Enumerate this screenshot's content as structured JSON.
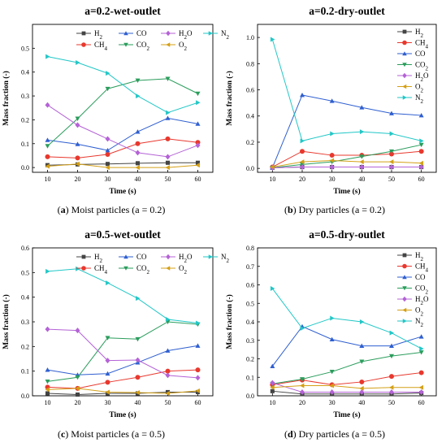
{
  "figure": {
    "captions": [
      {
        "letter": "a",
        "text": "Moist particles (a = 0.2)"
      },
      {
        "letter": "b",
        "text": "Dry particles (a = 0.2)"
      },
      {
        "letter": "c",
        "text": "Moist particles (a = 0.5)"
      },
      {
        "letter": "d",
        "text": "Dry particles (a = 0.5)"
      }
    ]
  },
  "styles": {
    "H2": {
      "color": "#444444",
      "marker": "square"
    },
    "CH4": {
      "color": "#e8382e",
      "marker": "circle"
    },
    "CO": {
      "color": "#2f5fd0",
      "marker": "triangle-up"
    },
    "CO2": {
      "color": "#2a9d5c",
      "marker": "triangle-down"
    },
    "H2O": {
      "color": "#b462d6",
      "marker": "diamond"
    },
    "O2": {
      "color": "#d4a017",
      "marker": "triangle-left"
    },
    "N2": {
      "color": "#22c7c7",
      "marker": "triangle-right"
    }
  },
  "legend_labels": {
    "H2": [
      "H",
      "2",
      ""
    ],
    "CH4": [
      "CH",
      "4",
      ""
    ],
    "CO": [
      "CO",
      "",
      ""
    ],
    "CO2": [
      "CO",
      "2",
      ""
    ],
    "H2O": [
      "H",
      "2",
      "O"
    ],
    "O2": [
      "O",
      "2",
      ""
    ],
    "N2": [
      "N",
      "2",
      ""
    ]
  },
  "chart_data": [
    {
      "type": "line",
      "title": "a=0.2-wet-outlet",
      "xlabel": "Time (s)",
      "ylabel": "Mass fraction (-)",
      "x": [
        10,
        20,
        30,
        40,
        50,
        60
      ],
      "xticks": [
        "10",
        "20",
        "30",
        "40",
        "50",
        "60"
      ],
      "ylim": [
        -0.02,
        0.6
      ],
      "yticks": [
        "0.0",
        "0.1",
        "0.2",
        "0.3",
        "0.4",
        "0.5"
      ],
      "ytick_values": [
        0,
        0.1,
        0.2,
        0.3,
        0.4,
        0.5
      ],
      "legend": "top, two rows",
      "legend_order": [
        "H2",
        "CO",
        "H2O",
        "N2",
        "CH4",
        "CO2",
        "O2"
      ],
      "series": [
        {
          "name": "H2",
          "values": [
            0.01,
            0.013,
            0.015,
            0.018,
            0.02,
            0.02
          ]
        },
        {
          "name": "CH4",
          "values": [
            0.045,
            0.04,
            0.055,
            0.1,
            0.12,
            0.105
          ]
        },
        {
          "name": "CO",
          "values": [
            0.115,
            0.098,
            0.072,
            0.15,
            0.207,
            0.183
          ]
        },
        {
          "name": "CO2",
          "values": [
            0.09,
            0.205,
            0.33,
            0.365,
            0.372,
            0.31
          ]
        },
        {
          "name": "H2O",
          "values": [
            0.262,
            0.178,
            0.12,
            0.062,
            0.045,
            0.093
          ]
        },
        {
          "name": "O2",
          "values": [
            0.005,
            0.015,
            0.0,
            0.0,
            0.0,
            0.01
          ]
        },
        {
          "name": "N2",
          "values": [
            0.465,
            0.44,
            0.395,
            0.3,
            0.23,
            0.272
          ]
        }
      ]
    },
    {
      "type": "line",
      "title": "a=0.2-dry-outlet",
      "xlabel": "Time (s)",
      "ylabel": "Mass fraction (-)",
      "x": [
        10,
        20,
        30,
        40,
        50,
        60
      ],
      "xticks": [
        "10",
        "20",
        "30",
        "40",
        "50",
        "60"
      ],
      "ylim": [
        -0.03,
        1.1
      ],
      "yticks": [
        "0.0",
        "0.2",
        "0.4",
        "0.6",
        "0.8",
        "1.0"
      ],
      "ytick_values": [
        0,
        0.2,
        0.4,
        0.6,
        0.8,
        1.0
      ],
      "legend": "top-right, vertical",
      "legend_order": [
        "H2",
        "CH4",
        "CO",
        "CO2",
        "H2O",
        "O2",
        "N2"
      ],
      "series": [
        {
          "name": "H2",
          "values": [
            0.005,
            0.01,
            0.01,
            0.01,
            0.01,
            0.01
          ]
        },
        {
          "name": "CH4",
          "values": [
            0.01,
            0.13,
            0.1,
            0.1,
            0.11,
            0.13
          ]
        },
        {
          "name": "CO",
          "values": [
            0.005,
            0.56,
            0.515,
            0.465,
            0.42,
            0.405
          ]
        },
        {
          "name": "CO2",
          "values": [
            0.005,
            0.03,
            0.05,
            0.09,
            0.13,
            0.18
          ]
        },
        {
          "name": "H2O",
          "values": [
            0.005,
            0.01,
            0.01,
            0.01,
            0.01,
            0.01
          ]
        },
        {
          "name": "O2",
          "values": [
            0.01,
            0.05,
            0.06,
            0.05,
            0.05,
            0.04
          ]
        },
        {
          "name": "N2",
          "values": [
            0.985,
            0.21,
            0.265,
            0.28,
            0.265,
            0.21
          ]
        }
      ]
    },
    {
      "type": "line",
      "title": "a=0.5-wet-outlet",
      "xlabel": "Time (s)",
      "ylabel": "Mass fraction (-)",
      "x": [
        10,
        20,
        30,
        40,
        50,
        60
      ],
      "xticks": [
        "10",
        "20",
        "30",
        "40",
        "50",
        "60"
      ],
      "ylim": [
        0,
        0.6
      ],
      "yticks": [
        "0.0",
        "0.1",
        "0.2",
        "0.3",
        "0.4",
        "0.5",
        "0.6"
      ],
      "ytick_values": [
        0,
        0.1,
        0.2,
        0.3,
        0.4,
        0.5,
        0.6
      ],
      "legend": "top, two rows",
      "legend_order": [
        "H2",
        "CO",
        "H2O",
        "N2",
        "CH4",
        "CO2",
        "O2"
      ],
      "series": [
        {
          "name": "H2",
          "values": [
            0.01,
            0.005,
            0.01,
            0.01,
            0.015,
            0.015
          ]
        },
        {
          "name": "CH4",
          "values": [
            0.035,
            0.03,
            0.055,
            0.075,
            0.1,
            0.105
          ]
        },
        {
          "name": "CO",
          "values": [
            0.105,
            0.085,
            0.09,
            0.135,
            0.183,
            0.203
          ]
        },
        {
          "name": "CO2",
          "values": [
            0.058,
            0.075,
            0.235,
            0.23,
            0.3,
            0.29
          ]
        },
        {
          "name": "H2O",
          "values": [
            0.27,
            0.265,
            0.143,
            0.145,
            0.083,
            0.073
          ]
        },
        {
          "name": "O2",
          "values": [
            0.025,
            0.03,
            0.015,
            0.013,
            0.01,
            0.02
          ]
        },
        {
          "name": "N2",
          "values": [
            0.505,
            0.515,
            0.458,
            0.395,
            0.31,
            0.295
          ]
        }
      ]
    },
    {
      "type": "line",
      "title": "a=0.5-dry-outlet",
      "xlabel": "Time (s)",
      "ylabel": "Mass fraction (-)",
      "x": [
        10,
        20,
        30,
        40,
        50,
        60
      ],
      "xticks": [
        "10",
        "20",
        "30",
        "40",
        "50",
        "60"
      ],
      "ylim": [
        0,
        0.8
      ],
      "yticks": [
        "0.0",
        "0.1",
        "0.2",
        "0.3",
        "0.4",
        "0.5",
        "0.6",
        "0.7",
        "0.8"
      ],
      "ytick_values": [
        0,
        0.1,
        0.2,
        0.3,
        0.4,
        0.5,
        0.6,
        0.7,
        0.8
      ],
      "legend": "top-right, vertical",
      "legend_order": [
        "H2",
        "CH4",
        "CO",
        "CO2",
        "H2O",
        "O2",
        "N2"
      ],
      "series": [
        {
          "name": "H2",
          "values": [
            0.025,
            0.01,
            0.01,
            0.01,
            0.01,
            0.015
          ]
        },
        {
          "name": "CH4",
          "values": [
            0.06,
            0.085,
            0.06,
            0.075,
            0.105,
            0.125
          ]
        },
        {
          "name": "CO",
          "values": [
            0.16,
            0.375,
            0.305,
            0.27,
            0.27,
            0.32
          ]
        },
        {
          "name": "CO2",
          "values": [
            0.065,
            0.09,
            0.13,
            0.185,
            0.215,
            0.235
          ]
        },
        {
          "name": "H2O",
          "values": [
            0.07,
            0.02,
            0.02,
            0.02,
            0.02,
            0.02
          ]
        },
        {
          "name": "O2",
          "values": [
            0.045,
            0.055,
            0.055,
            0.04,
            0.045,
            0.045
          ]
        },
        {
          "name": "N2",
          "values": [
            0.58,
            0.365,
            0.42,
            0.4,
            0.34,
            0.255
          ]
        }
      ]
    }
  ]
}
